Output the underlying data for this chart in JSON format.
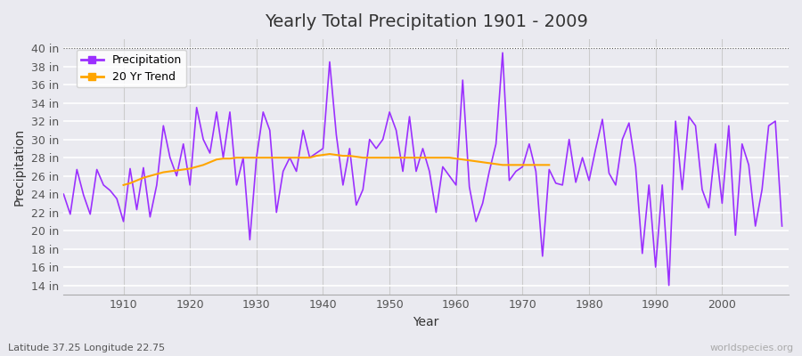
{
  "title": "Yearly Total Precipitation 1901 - 2009",
  "xlabel": "Year",
  "ylabel": "Precipitation",
  "subtitle_lat_lon": "Latitude 37.25 Longitude 22.75",
  "watermark": "worldspecies.org",
  "ylim": [
    13,
    41
  ],
  "yticks": [
    14,
    16,
    18,
    20,
    22,
    24,
    26,
    28,
    30,
    32,
    34,
    36,
    38,
    40
  ],
  "ytick_labels": [
    "14 in",
    "16 in",
    "18 in",
    "20 in",
    "22 in",
    "24 in",
    "26 in",
    "28 in",
    "30 in",
    "32 in",
    "34 in",
    "36 in",
    "38 in",
    "40 in"
  ],
  "precip_color": "#9B30FF",
  "trend_color": "#FFA500",
  "bg_color": "#EAEAF0",
  "plot_bg": "#EAEAF0",
  "years": [
    1901,
    1902,
    1903,
    1904,
    1905,
    1906,
    1907,
    1908,
    1909,
    1910,
    1911,
    1912,
    1913,
    1914,
    1915,
    1916,
    1917,
    1918,
    1919,
    1920,
    1921,
    1922,
    1923,
    1924,
    1925,
    1926,
    1927,
    1928,
    1929,
    1930,
    1931,
    1932,
    1933,
    1934,
    1935,
    1936,
    1937,
    1938,
    1939,
    1940,
    1941,
    1942,
    1943,
    1944,
    1945,
    1946,
    1947,
    1948,
    1949,
    1950,
    1951,
    1952,
    1953,
    1954,
    1955,
    1956,
    1957,
    1958,
    1959,
    1960,
    1961,
    1962,
    1963,
    1964,
    1965,
    1966,
    1967,
    1968,
    1969,
    1970,
    1971,
    1972,
    1973,
    1974,
    1975,
    1976,
    1977,
    1978,
    1979,
    1980,
    1981,
    1982,
    1983,
    1984,
    1985,
    1986,
    1987,
    1988,
    1989,
    1990,
    1991,
    1992,
    1993,
    1994,
    1995,
    1996,
    1997,
    1998,
    1999,
    2000,
    2001,
    2002,
    2003,
    2004,
    2005,
    2006,
    2007,
    2008,
    2009
  ],
  "precipitation": [
    24.0,
    21.8,
    26.7,
    23.9,
    21.8,
    26.7,
    25.0,
    24.4,
    23.5,
    21.0,
    26.8,
    22.3,
    26.9,
    21.5,
    25.0,
    31.5,
    28.0,
    26.0,
    29.5,
    25.0,
    33.5,
    30.0,
    28.5,
    33.0,
    28.0,
    33.0,
    25.0,
    28.0,
    19.0,
    28.0,
    33.0,
    31.0,
    22.0,
    26.5,
    28.0,
    26.5,
    31.0,
    28.0,
    28.5,
    29.0,
    38.5,
    30.5,
    25.0,
    29.0,
    22.8,
    24.5,
    30.0,
    29.0,
    30.0,
    33.0,
    31.0,
    26.5,
    32.5,
    26.5,
    29.0,
    26.5,
    22.0,
    27.0,
    26.0,
    25.0,
    36.5,
    24.8,
    21.0,
    23.0,
    26.5,
    29.5,
    39.5,
    25.5,
    26.5,
    27.0,
    29.5,
    26.5,
    17.2,
    26.7,
    25.2,
    25.0,
    30.0,
    25.3,
    28.0,
    25.5,
    29.0,
    32.2,
    26.3,
    25.0,
    30.0,
    31.8,
    27.0,
    17.5,
    25.0,
    16.0,
    25.0,
    14.0,
    32.0,
    24.5,
    32.5,
    31.5,
    24.5,
    22.5,
    29.5,
    23.0,
    31.5,
    19.5,
    29.5,
    27.2,
    20.5,
    24.5,
    31.5,
    32.0,
    20.5
  ],
  "trend_years": [
    1910,
    1911,
    1912,
    1913,
    1914,
    1915,
    1916,
    1917,
    1918,
    1919,
    1920,
    1921,
    1922,
    1923,
    1924,
    1925,
    1926,
    1927,
    1928,
    1929,
    1930,
    1931,
    1932,
    1933,
    1934,
    1935,
    1936,
    1937,
    1938,
    1939,
    1940,
    1941,
    1942,
    1943,
    1944,
    1945,
    1946,
    1947,
    1948,
    1949,
    1950,
    1951,
    1952,
    1953,
    1954,
    1955,
    1956,
    1957,
    1958,
    1959,
    1960,
    1961,
    1962,
    1963,
    1964,
    1965,
    1966,
    1967,
    1968,
    1969,
    1970,
    1971,
    1972,
    1973,
    1974
  ],
  "trend_values": [
    25.0,
    25.2,
    25.5,
    25.8,
    26.0,
    26.2,
    26.4,
    26.5,
    26.6,
    26.7,
    26.8,
    27.0,
    27.2,
    27.5,
    27.8,
    27.9,
    27.9,
    28.0,
    28.0,
    28.0,
    28.0,
    28.0,
    28.0,
    28.0,
    28.0,
    28.0,
    28.0,
    28.0,
    28.0,
    28.2,
    28.3,
    28.4,
    28.3,
    28.2,
    28.2,
    28.1,
    28.0,
    28.0,
    28.0,
    28.0,
    28.0,
    28.0,
    28.0,
    28.0,
    28.0,
    28.0,
    28.0,
    28.0,
    28.0,
    28.0,
    27.9,
    27.8,
    27.7,
    27.6,
    27.5,
    27.4,
    27.3,
    27.2,
    27.2,
    27.2,
    27.2,
    27.2,
    27.2,
    27.2,
    27.2
  ]
}
